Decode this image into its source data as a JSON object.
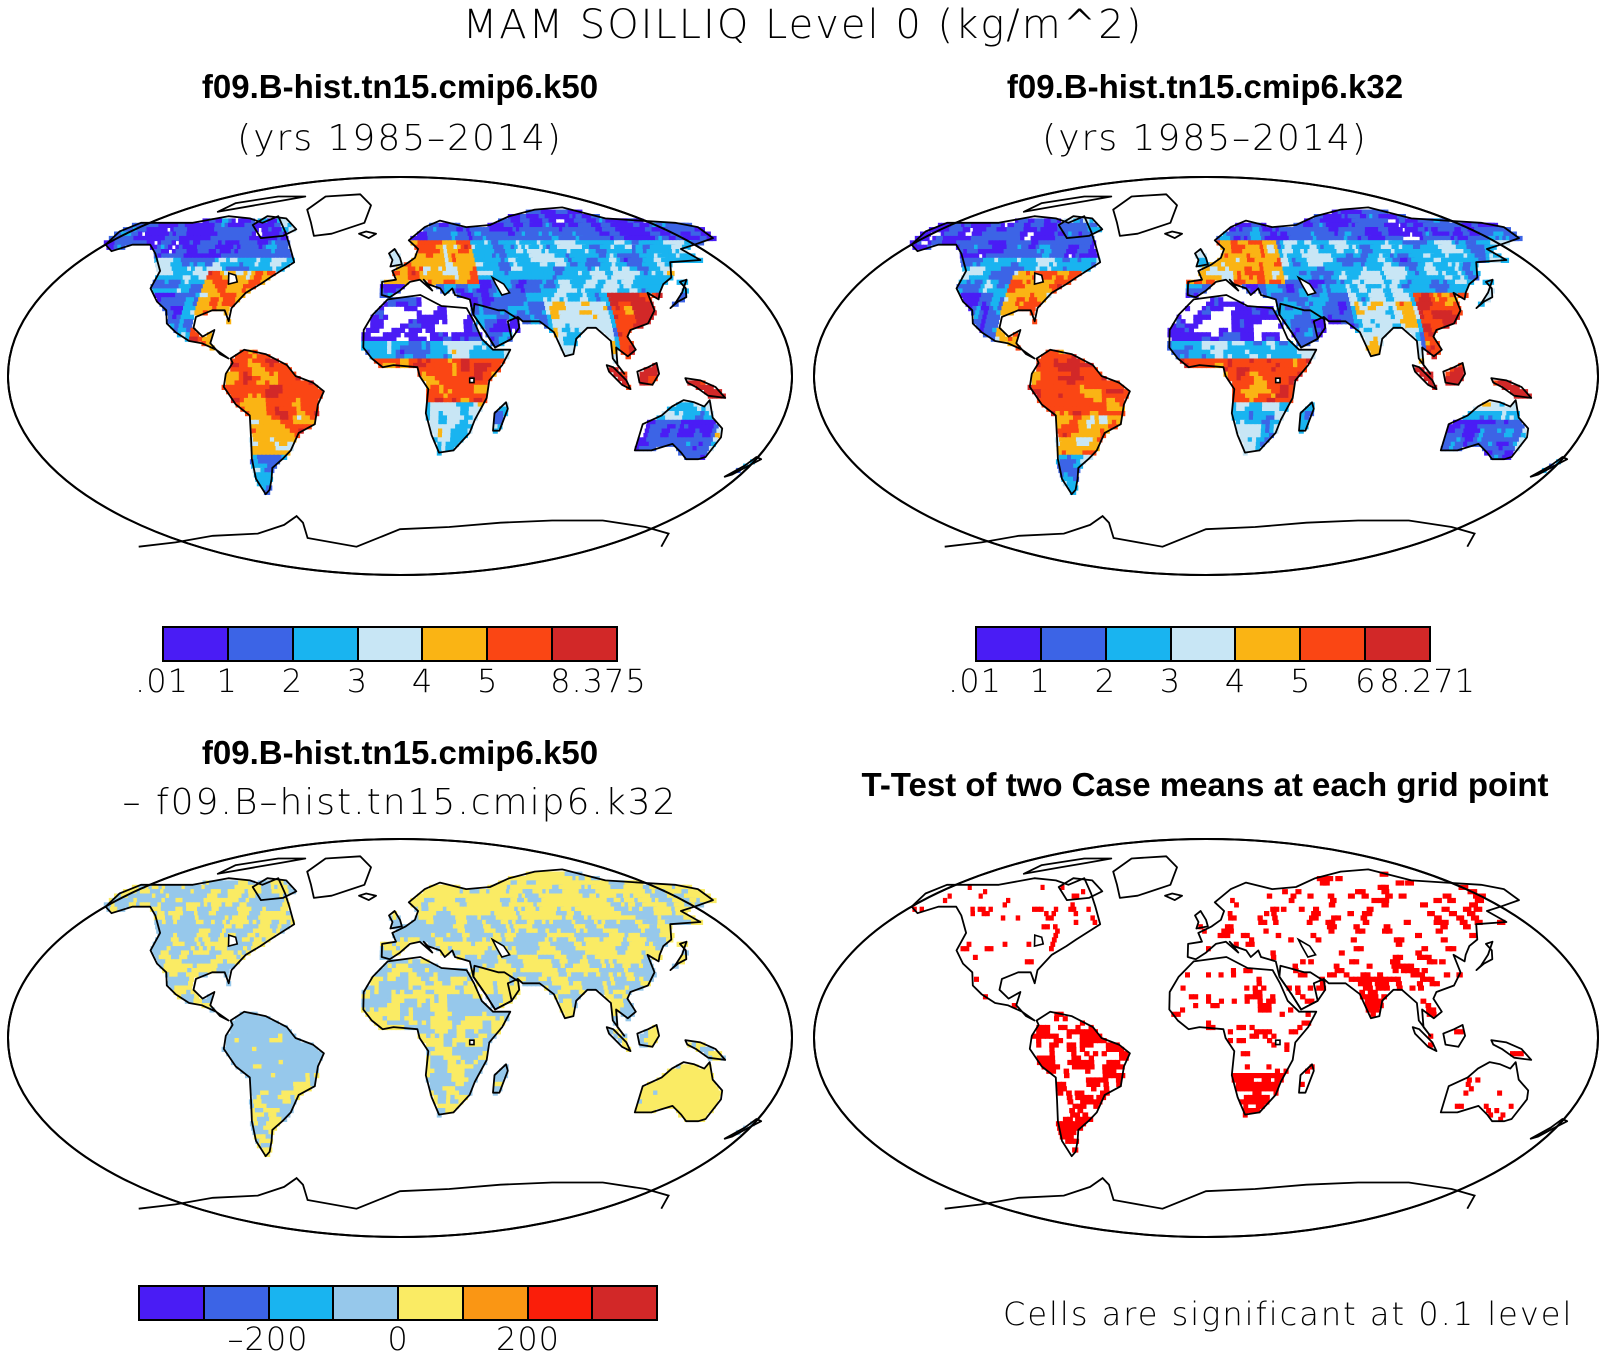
{
  "title": "MAM SOILLIQ Level 0 (kg/m^2)",
  "panels": [
    {
      "title": "f09.B-hist.tn15.cmip6.k50",
      "subtitle": "(yrs 1985–2014)",
      "colorbar": {
        "colors": [
          "#4a1cf5",
          "#3c64e6",
          "#19b4f0",
          "#c8e6f5",
          "#fab414",
          "#fa4614",
          "#d22828"
        ],
        "labels": [
          ".01",
          "1",
          "2",
          "3",
          "4",
          "5",
          "8.375"
        ]
      }
    },
    {
      "title": "f09.B-hist.tn15.cmip6.k32",
      "subtitle": "(yrs 1985–2014)",
      "colorbar": {
        "colors": [
          "#4a1cf5",
          "#3c64e6",
          "#19b4f0",
          "#c8e6f5",
          "#fab414",
          "#fa4614",
          "#d22828"
        ],
        "labels": [
          ".01",
          "1",
          "2",
          "3",
          "4",
          "5",
          "6",
          "8.271"
        ]
      }
    },
    {
      "title": "f09.B-hist.tn15.cmip6.k50",
      "subtitle": "– f09.B–hist.tn15.cmip6.k32",
      "colorbar": {
        "colors": [
          "#4a1cf5",
          "#3c64e6",
          "#19b4f0",
          "#96c8eb",
          "#faeb64",
          "#fa9614",
          "#fa1e0a",
          "#d22828"
        ],
        "labels": [
          "–200",
          "0",
          "200"
        ]
      }
    },
    {
      "title": "T-Test of two Case means at each grid point",
      "note": "Cells are significant at 0.1 level",
      "sig_color": "#ff0000"
    }
  ]
}
